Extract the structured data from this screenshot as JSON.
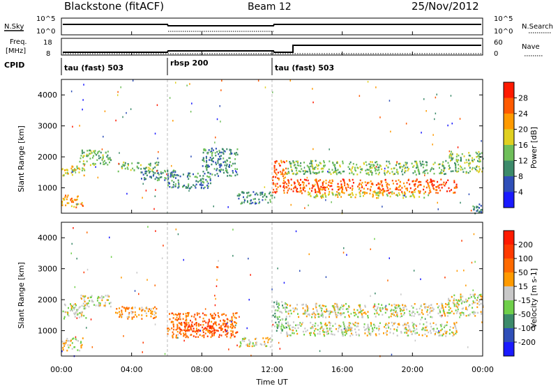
{
  "header": {
    "station": "Blackstone (fitACF)",
    "beam": "Beam 12",
    "date": "25/Nov/2012"
  },
  "strips": {
    "nsky_label": "N.Sky",
    "nsearch_label": "N.Search",
    "freq_label_1": "Freq.",
    "freq_label_2": "[MHz]",
    "nave_label": "Nave",
    "cpid_label": "CPID",
    "count_ticks": [
      "10^5",
      "10^0"
    ],
    "freq_ticks": [
      "18",
      "8"
    ],
    "nave_ticks": [
      "60",
      "0"
    ]
  },
  "cpid_segments": [
    {
      "label": "tau (fast) 503",
      "start_h": 0
    },
    {
      "label": "rbsp 200",
      "start_h": 6
    },
    {
      "label": "tau (fast) 503",
      "start_h": 12
    }
  ],
  "axes": {
    "ylabel": "Slant Range [km]",
    "xlabel": "Time UT",
    "xtick_labels": [
      "00:00",
      "04:00",
      "08:00",
      "12:00",
      "16:00",
      "20:00",
      "00:00"
    ],
    "ytick_labels": [
      "1000",
      "2000",
      "3000",
      "4000"
    ]
  },
  "chart_data": [
    {
      "type": "heatmap",
      "name": "power",
      "xlim": [
        0,
        24
      ],
      "ylim": [
        180,
        4500
      ],
      "x": [
        0,
        4,
        8,
        12,
        16,
        20,
        24
      ],
      "y": [
        1000,
        2000,
        3000,
        4000
      ],
      "colorbar_title": "Power [dB]",
      "colorbar_ticks": [
        "4",
        "8",
        "12",
        "16",
        "20",
        "24",
        "28"
      ],
      "colorbar_colors": [
        "#1a1aff",
        "#2f4fb8",
        "#3c8a6a",
        "#6fbf5a",
        "#e0d020",
        "#ff9a00",
        "#ff5a00",
        "#ff1a00"
      ],
      "regions": [
        {
          "t": [
            0.0,
            1.3
          ],
          "r": [
            1400,
            1750
          ],
          "level": 4
        },
        {
          "t": [
            1.0,
            2.8
          ],
          "r": [
            1750,
            2250
          ],
          "level": 3
        },
        {
          "t": [
            0.0,
            1.2
          ],
          "r": [
            380,
            780
          ],
          "level": 5
        },
        {
          "t": [
            3.2,
            5.5
          ],
          "r": [
            1550,
            1850
          ],
          "level": 3
        },
        {
          "t": [
            4.5,
            6.5
          ],
          "r": [
            1250,
            1600
          ],
          "level": 2
        },
        {
          "t": [
            6.0,
            8.5
          ],
          "r": [
            1000,
            1500
          ],
          "level": 2
        },
        {
          "t": [
            8.0,
            10.0
          ],
          "r": [
            1400,
            2300
          ],
          "level": 2
        },
        {
          "t": [
            10.0,
            12.0
          ],
          "r": [
            500,
            900
          ],
          "level": 2
        },
        {
          "t": [
            12.0,
            12.8
          ],
          "r": [
            850,
            1900
          ],
          "level": 6
        },
        {
          "t": [
            12.8,
            22.0
          ],
          "r": [
            1450,
            1900
          ],
          "level": 3
        },
        {
          "t": [
            12.8,
            22.5
          ],
          "r": [
            850,
            1300
          ],
          "level": 6
        },
        {
          "t": [
            14.0,
            21.0
          ],
          "r": [
            700,
            900
          ],
          "level": 4
        },
        {
          "t": [
            22.0,
            24.0
          ],
          "r": [
            1500,
            2200
          ],
          "level": 3
        },
        {
          "t": [
            23.4,
            24.0
          ],
          "r": [
            200,
            500
          ],
          "level": 2
        }
      ]
    },
    {
      "type": "heatmap",
      "name": "velocity",
      "xlim": [
        0,
        24
      ],
      "ylim": [
        180,
        4500
      ],
      "x": [
        0,
        4,
        8,
        12,
        16,
        20,
        24
      ],
      "y": [
        1000,
        2000,
        3000,
        4000
      ],
      "colorbar_title": "Velocity [m s-1]",
      "colorbar_ticks": [
        "200",
        "100",
        "50",
        "15",
        "-15",
        "-50",
        "-100",
        "-200"
      ],
      "colorbar_colors": [
        "#1a1aff",
        "#2f4fb8",
        "#3c8a6a",
        "#6fcf4a",
        "#c8c8c8",
        "#ff9a00",
        "#ff6a00",
        "#ff3a00",
        "#ff1a00"
      ],
      "regions": [
        {
          "t": [
            0.0,
            1.4
          ],
          "r": [
            1400,
            1900
          ],
          "level": 4
        },
        {
          "t": [
            1.0,
            2.8
          ],
          "r": [
            1800,
            2200
          ],
          "level": 4
        },
        {
          "t": [
            0.0,
            1.2
          ],
          "r": [
            380,
            780
          ],
          "level": 4
        },
        {
          "t": [
            3.0,
            5.5
          ],
          "r": [
            1400,
            1800
          ],
          "level": 5
        },
        {
          "t": [
            6.0,
            10.0
          ],
          "r": [
            800,
            1600
          ],
          "level": 6
        },
        {
          "t": [
            6.5,
            9.5
          ],
          "r": [
            1000,
            1300
          ],
          "level": 7
        },
        {
          "t": [
            10.0,
            12.0
          ],
          "r": [
            500,
            800
          ],
          "level": 4
        },
        {
          "t": [
            12.0,
            12.8
          ],
          "r": [
            1000,
            2000
          ],
          "level": 3
        },
        {
          "t": [
            12.8,
            22.0
          ],
          "r": [
            1450,
            1900
          ],
          "level": 4
        },
        {
          "t": [
            12.8,
            22.5
          ],
          "r": [
            850,
            1300
          ],
          "level": 4
        },
        {
          "t": [
            22.0,
            24.0
          ],
          "r": [
            1500,
            2200
          ],
          "level": 4
        }
      ]
    }
  ]
}
